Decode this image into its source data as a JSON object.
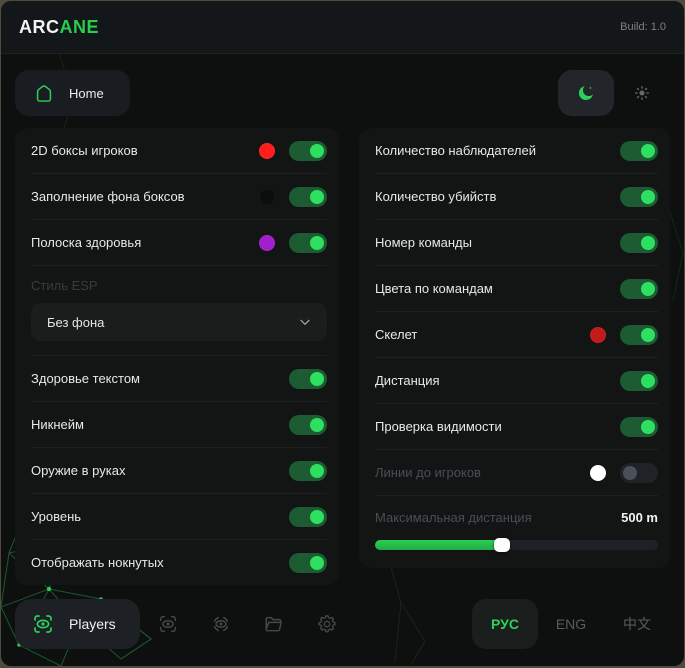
{
  "header": {
    "brand_white": "ARC",
    "brand_green": "ANE",
    "build_label": "Build: 1.0"
  },
  "toolbar": {
    "home_label": "Home"
  },
  "theme": {
    "active": "dark"
  },
  "colors": {
    "accent_green": "#27cf4e",
    "toggle_on_knob": "#2ee061",
    "toggle_on_track": "#1d5b32"
  },
  "left_panel": {
    "rows_top": [
      {
        "label": "2D боксы игроков",
        "color": "#ff1d1d",
        "state": "on"
      },
      {
        "label": "Заполнение фона боксов",
        "color": "#0b0d0c",
        "state": "on"
      },
      {
        "label": "Полоска здоровья",
        "color": "#a21fcb",
        "state": "on"
      }
    ],
    "style_group": {
      "label": "Стиль ESP",
      "selected": "Без фона"
    },
    "rows_bottom": [
      {
        "label": "Здоровье текстом",
        "state": "on"
      },
      {
        "label": "Никнейм",
        "state": "on"
      },
      {
        "label": "Оружие в руках",
        "state": "on"
      },
      {
        "label": "Уровень",
        "state": "on"
      },
      {
        "label": "Отображать нокнутых",
        "state": "on"
      }
    ]
  },
  "right_panel": {
    "rows": [
      {
        "label": "Количество наблюдателей",
        "state": "on"
      },
      {
        "label": "Количество убийств",
        "state": "on"
      },
      {
        "label": "Номер команды",
        "state": "on"
      },
      {
        "label": "Цвета по командам",
        "state": "on"
      },
      {
        "label": "Скелет",
        "color": "#c41a1a",
        "state": "on"
      },
      {
        "label": "Дистанция",
        "state": "on"
      },
      {
        "label": "Проверка видимости",
        "state": "on"
      },
      {
        "label": "Линии до игроков",
        "color": "#ffffff",
        "state": "off",
        "disabled": "true"
      }
    ],
    "slider": {
      "label": "Максимальная дистанция",
      "value": "500 m",
      "percent": 45
    }
  },
  "footer": {
    "players_label": "Players",
    "languages": [
      {
        "label": "РУС"
      },
      {
        "label": "ENG"
      },
      {
        "label": "中文"
      }
    ]
  }
}
